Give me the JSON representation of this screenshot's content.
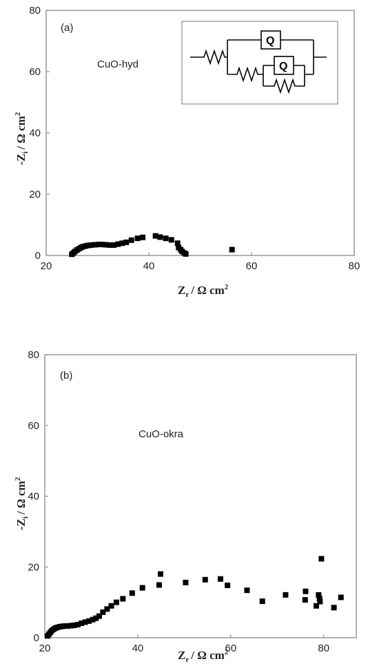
{
  "chart_data": [
    {
      "type": "scatter",
      "panel_label": "(a)",
      "annotation": "CuO-hyd",
      "xlabel": {
        "main": "Z",
        "sub": "r",
        "rest": "/ Ω cm",
        "sup": "2"
      },
      "ylabel": {
        "main": "-Z",
        "sub": "i",
        "rest": "/ Ω cm",
        "sup": "2"
      },
      "xlim": [
        20,
        80
      ],
      "ylim": [
        0,
        80
      ],
      "xticks": [
        "20",
        "40",
        "60",
        "80"
      ],
      "yticks": [
        "0",
        "20",
        "40",
        "60",
        "80"
      ],
      "inset_circuit": {
        "element_label": "Q"
      },
      "points": [
        [
          25.0,
          0.4
        ],
        [
          25.3,
          0.8
        ],
        [
          25.6,
          1.3
        ],
        [
          26.0,
          1.8
        ],
        [
          26.4,
          2.2
        ],
        [
          26.8,
          2.6
        ],
        [
          27.2,
          2.9
        ],
        [
          27.7,
          3.1
        ],
        [
          28.2,
          3.3
        ],
        [
          28.8,
          3.4
        ],
        [
          29.5,
          3.5
        ],
        [
          30.2,
          3.6
        ],
        [
          30.9,
          3.6
        ],
        [
          31.6,
          3.5
        ],
        [
          32.3,
          3.4
        ],
        [
          33.2,
          3.4
        ],
        [
          34.0,
          3.7
        ],
        [
          34.8,
          4.0
        ],
        [
          35.6,
          4.3
        ],
        [
          36.6,
          5.0
        ],
        [
          37.8,
          5.6
        ],
        [
          38.8,
          5.9
        ],
        [
          41.3,
          6.4
        ],
        [
          42.2,
          6.0
        ],
        [
          43.3,
          5.6
        ],
        [
          44.4,
          5.1
        ],
        [
          45.6,
          4.0
        ],
        [
          45.8,
          2.6
        ],
        [
          46.2,
          1.9
        ],
        [
          46.5,
          1.3
        ],
        [
          46.9,
          0.8
        ],
        [
          47.2,
          0.5
        ],
        [
          56.2,
          1.9
        ]
      ]
    },
    {
      "type": "scatter",
      "panel_label": "(b)",
      "annotation": "CuO-okra",
      "xlabel": {
        "main": "Z",
        "sub": "r",
        "rest": "/ Ω cm",
        "sup": "2"
      },
      "ylabel": {
        "main": "-Z",
        "sub": "i",
        "rest": "/ Ω cm",
        "sup": "2"
      },
      "xlim": [
        20,
        87
      ],
      "ylim": [
        0,
        80
      ],
      "xticks": [
        "20",
        "40",
        "60",
        "80"
      ],
      "yticks": [
        "0",
        "20",
        "40",
        "60",
        "80"
      ],
      "points": [
        [
          20.6,
          0.5
        ],
        [
          20.9,
          1.0
        ],
        [
          21.2,
          1.5
        ],
        [
          21.5,
          2.0
        ],
        [
          21.9,
          2.4
        ],
        [
          22.3,
          2.7
        ],
        [
          22.7,
          2.9
        ],
        [
          23.2,
          3.1
        ],
        [
          23.7,
          3.2
        ],
        [
          24.3,
          3.3
        ],
        [
          24.9,
          3.3
        ],
        [
          25.6,
          3.4
        ],
        [
          26.3,
          3.5
        ],
        [
          27.1,
          3.7
        ],
        [
          27.9,
          4.1
        ],
        [
          28.7,
          4.4
        ],
        [
          29.5,
          4.7
        ],
        [
          30.3,
          5.1
        ],
        [
          31.0,
          5.5
        ],
        [
          31.7,
          6.1
        ],
        [
          32.5,
          7.2
        ],
        [
          33.4,
          8.1
        ],
        [
          34.3,
          9.0
        ],
        [
          35.4,
          10.0
        ],
        [
          36.8,
          11.0
        ],
        [
          38.8,
          12.6
        ],
        [
          41.0,
          14.1
        ],
        [
          44.6,
          14.9
        ],
        [
          44.9,
          18.0
        ],
        [
          50.3,
          15.6
        ],
        [
          54.5,
          16.4
        ],
        [
          57.8,
          16.6
        ],
        [
          59.3,
          14.8
        ],
        [
          63.5,
          13.4
        ],
        [
          66.8,
          10.3
        ],
        [
          71.8,
          12.1
        ],
        [
          76.1,
          13.1
        ],
        [
          76.0,
          10.7
        ],
        [
          78.4,
          9.0
        ],
        [
          78.9,
          12.1
        ],
        [
          79.1,
          11.1
        ],
        [
          79.2,
          10.2
        ],
        [
          79.5,
          22.3
        ],
        [
          82.2,
          8.5
        ],
        [
          83.7,
          11.4
        ]
      ]
    }
  ]
}
